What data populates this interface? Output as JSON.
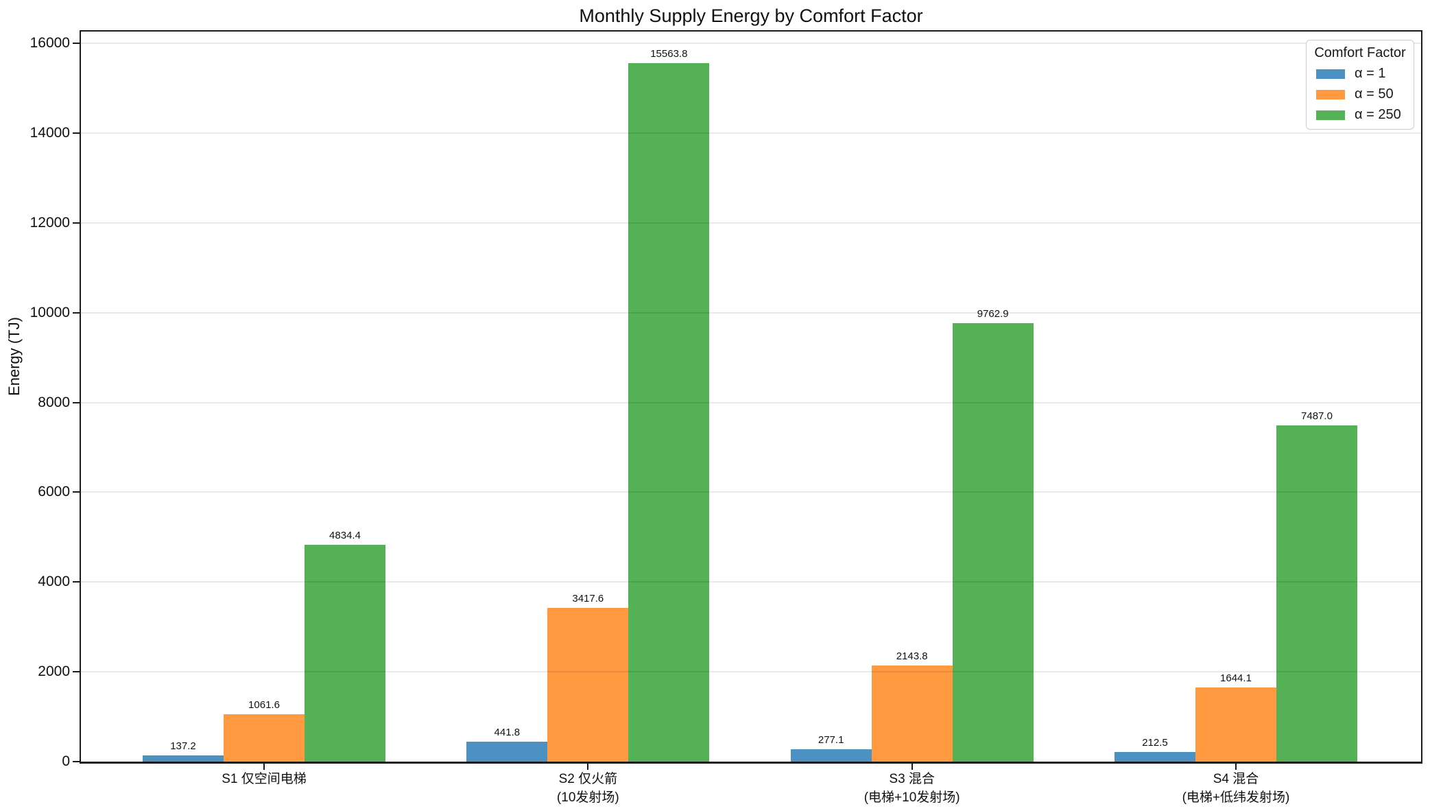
{
  "title": "Monthly Supply Energy by Comfort Factor",
  "chart_data": {
    "type": "bar",
    "title": "Monthly Supply Energy by Comfort Factor",
    "xlabel": "",
    "ylabel": "Energy (TJ)",
    "categories": [
      "S1 仅空间电梯",
      "S2 仅火箭\n(10发射场)",
      "S3 混合\n(电梯+10发射场)",
      "S4 混合\n(电梯+低纬发射场)"
    ],
    "series": [
      {
        "name": "α = 1",
        "color": "#4B92C3",
        "values": [
          137.2,
          441.8,
          277.1,
          212.5
        ]
      },
      {
        "name": "α = 50",
        "color": "#FF9A41",
        "values": [
          1061.6,
          3417.6,
          2143.8,
          1644.1
        ]
      },
      {
        "name": "α = 250",
        "color": "#55B156",
        "values": [
          4834.4,
          15563.8,
          9762.9,
          7487.0
        ]
      }
    ],
    "bar_value_labels": [
      [
        "137.2",
        "441.8",
        "277.1",
        "212.5"
      ],
      [
        "1061.6",
        "3417.6",
        "2143.8",
        "1644.1"
      ],
      [
        "4834.4",
        "15563.8",
        "9762.9",
        "7487.0"
      ]
    ],
    "yticks": [
      0,
      2000,
      4000,
      6000,
      8000,
      10000,
      12000,
      14000,
      16000
    ],
    "ylim": [
      0,
      16260
    ],
    "grid": true,
    "legend_title": "Comfort Factor",
    "legend_position": "upper right"
  }
}
